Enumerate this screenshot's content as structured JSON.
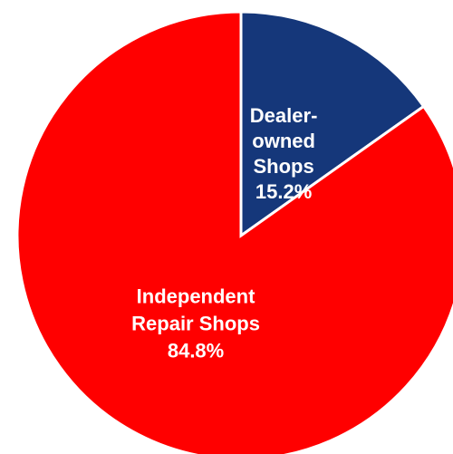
{
  "chart_data": {
    "type": "pie",
    "title": "",
    "start_angle": "12 o'clock",
    "direction": "clockwise",
    "slices": [
      {
        "label_lines": [
          "Dealer-",
          "owned",
          "Shops"
        ],
        "value": 15.2,
        "value_label": "15.2%",
        "color": "#15377a"
      },
      {
        "label_lines": [
          "Independent",
          "Repair Shops"
        ],
        "value": 84.8,
        "value_label": "84.8%",
        "color": "#ff0000"
      }
    ],
    "legend": "none"
  }
}
